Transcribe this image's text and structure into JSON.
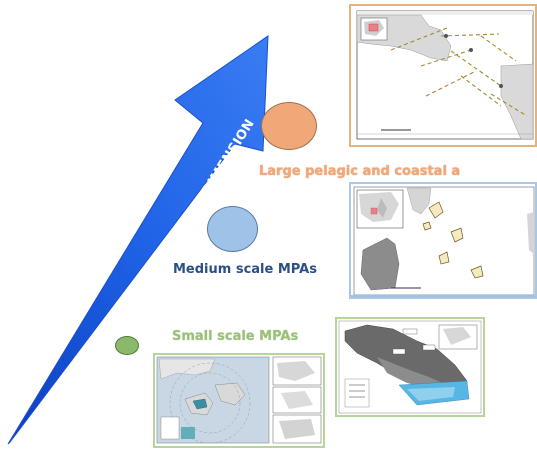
{
  "arrow": {
    "label": "MPAs DIMENSION",
    "color": "#1e63e8"
  },
  "scales": {
    "large": {
      "label": "Large pelagic and coastal a",
      "color": "#f1a878"
    },
    "medium": {
      "label": "Medium scale MPAs",
      "color": "#2c4f86"
    },
    "small": {
      "label": "Small scale MPAs",
      "color": "#9cc07c"
    }
  }
}
